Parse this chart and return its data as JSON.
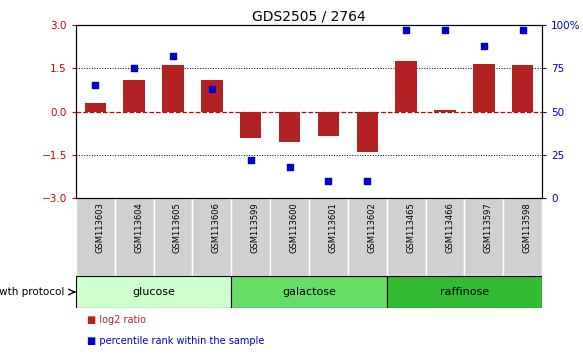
{
  "title": "GDS2505 / 2764",
  "samples": [
    "GSM113603",
    "GSM113604",
    "GSM113605",
    "GSM113606",
    "GSM113599",
    "GSM113600",
    "GSM113601",
    "GSM113602",
    "GSM113465",
    "GSM113466",
    "GSM113597",
    "GSM113598"
  ],
  "log2_ratio": [
    0.3,
    1.1,
    1.6,
    1.1,
    -0.9,
    -1.05,
    -0.85,
    -1.4,
    1.75,
    0.05,
    1.65,
    1.6
  ],
  "percentile_rank": [
    65,
    75,
    82,
    63,
    22,
    18,
    10,
    10,
    97,
    97,
    88,
    97
  ],
  "bar_color": "#b22222",
  "dot_color": "#0000cc",
  "ylim": [
    -3,
    3
  ],
  "y2lim": [
    0,
    100
  ],
  "yticks": [
    -3,
    -1.5,
    0,
    1.5,
    3
  ],
  "y2ticks": [
    0,
    25,
    50,
    75,
    100
  ],
  "hlines_dotted": [
    1.5,
    -1.5
  ],
  "hline_zero_color": "#cc0000",
  "hline_color": "#000000",
  "groups": [
    {
      "label": "glucose",
      "start": 0,
      "end": 4,
      "color": "#ccffcc"
    },
    {
      "label": "galactose",
      "start": 4,
      "end": 8,
      "color": "#66dd66"
    },
    {
      "label": "raffinose",
      "start": 8,
      "end": 12,
      "color": "#33bb33"
    }
  ],
  "legend_log2": "log2 ratio",
  "legend_pct": "percentile rank within the sample",
  "growth_protocol_label": "growth protocol",
  "label_bg_color": "#d0d0d0",
  "label_border_color": "#ffffff",
  "bar_width": 0.55
}
